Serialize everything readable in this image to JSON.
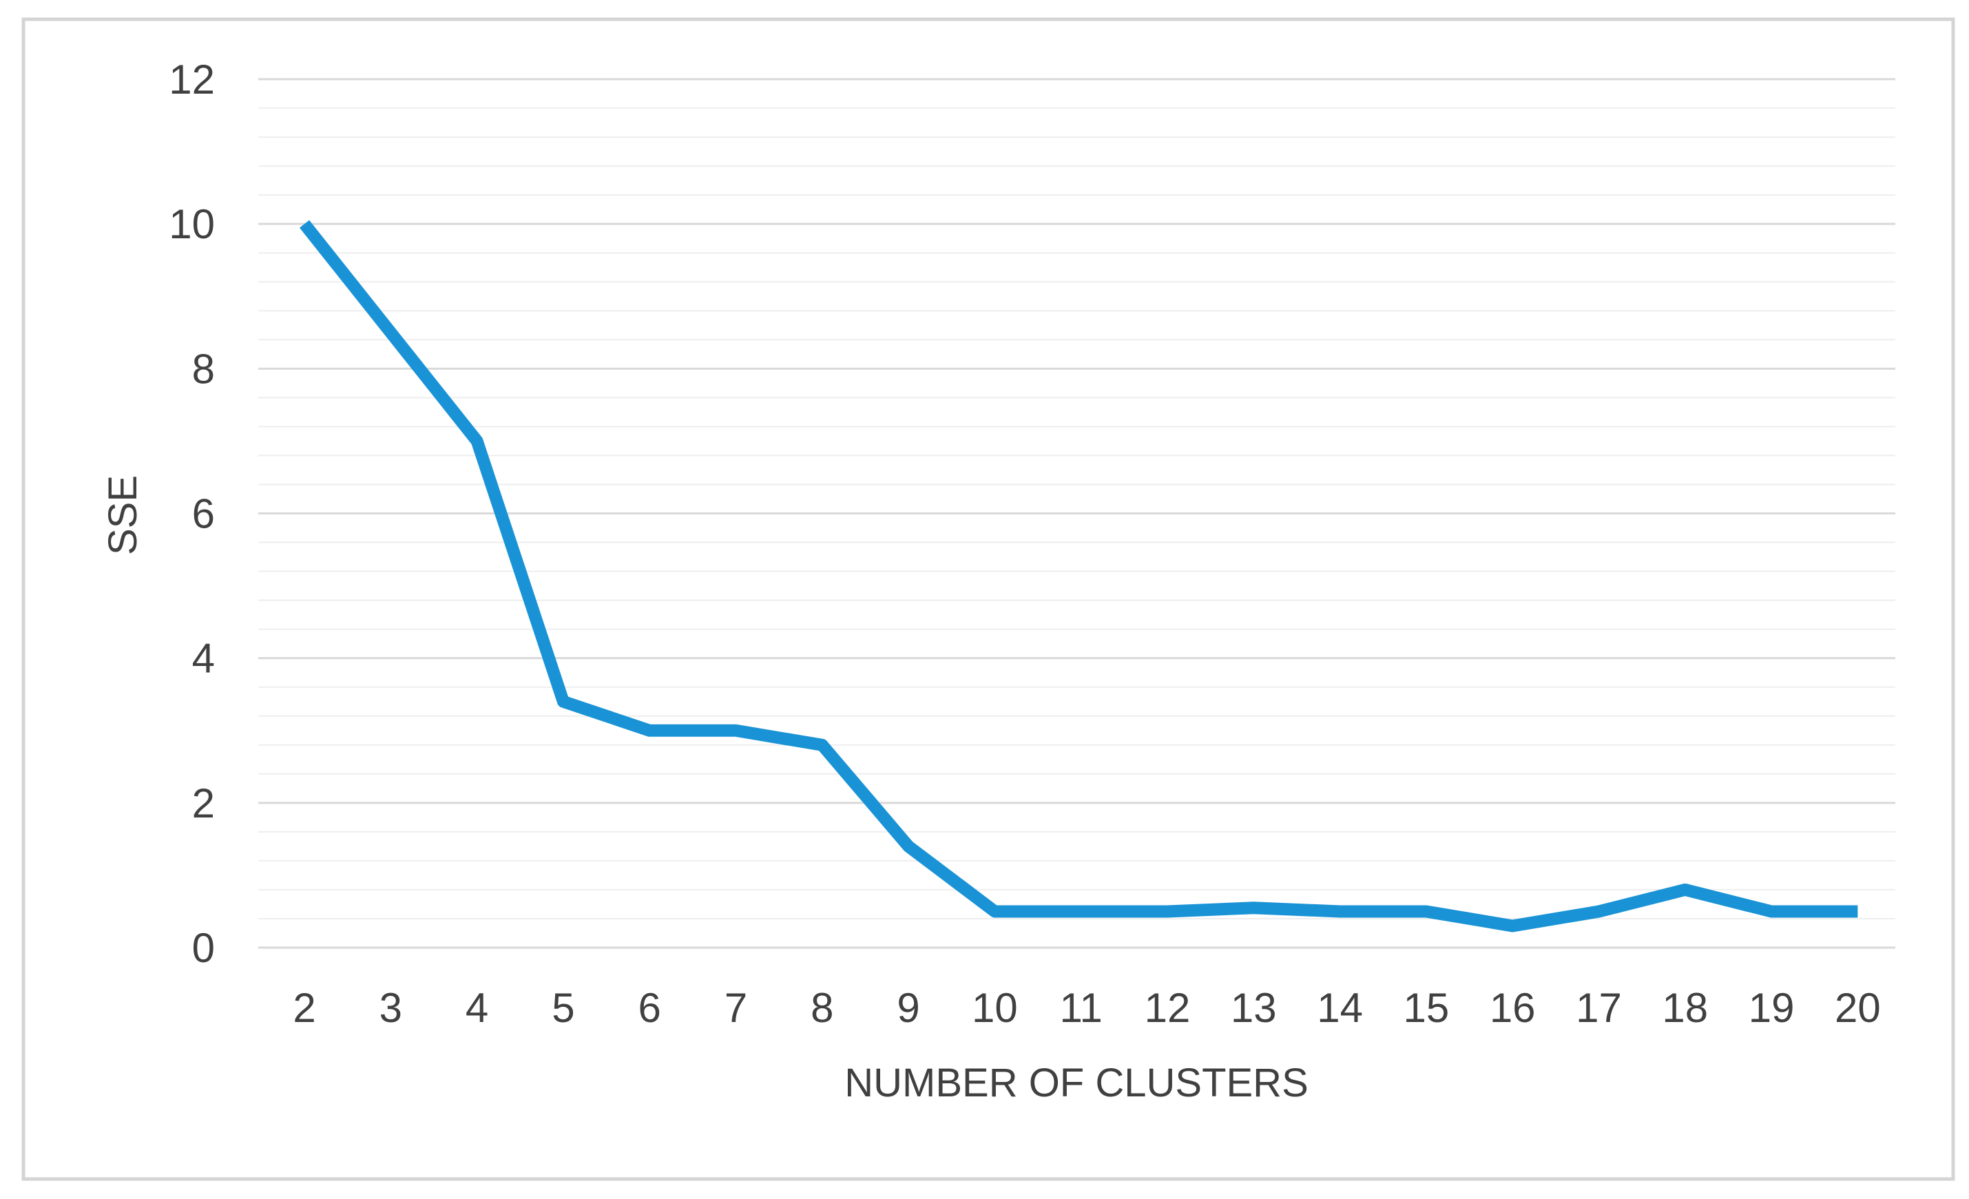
{
  "chart_data": {
    "type": "line",
    "title": "",
    "xlabel": "NUMBER OF CLUSTERS",
    "ylabel": "SSE",
    "categories": [
      "2",
      "3",
      "4",
      "5",
      "6",
      "7",
      "8",
      "9",
      "10",
      "11",
      "12",
      "13",
      "14",
      "15",
      "16",
      "17",
      "18",
      "19",
      "20"
    ],
    "series": [
      {
        "values": [
          10,
          8.5,
          7,
          3.4,
          3.0,
          3.0,
          2.8,
          1.4,
          0.5,
          0.5,
          0.5,
          0.55,
          0.5,
          0.5,
          0.3,
          0.5,
          0.8,
          0.5,
          0.5
        ]
      }
    ],
    "y_ticks": [
      0,
      2,
      4,
      6,
      8,
      10,
      12
    ],
    "ylim": [
      0,
      12
    ],
    "grid": true,
    "legend": "none",
    "colors": {
      "line": "#1a93d6",
      "grid_major": "#d9d9d9",
      "grid_minor": "#eeeeee",
      "frame": "#d4d4d4",
      "text": "#404040"
    }
  }
}
